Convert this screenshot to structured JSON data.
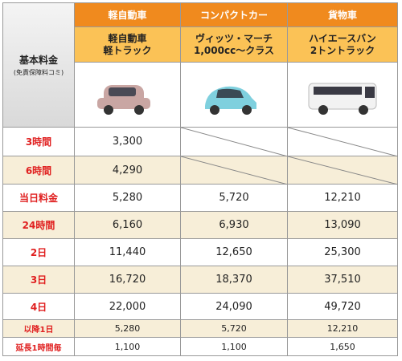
{
  "header": {
    "corner_title": "基本料金",
    "corner_note": "(免責保障料コミ)",
    "columns": [
      {
        "category": "軽自動車",
        "models": [
          "軽自動車",
          "軽トラック"
        ]
      },
      {
        "category": "コンパクトカー",
        "models": [
          "ヴィッツ・マーチ",
          "1,000cc～クラス"
        ]
      },
      {
        "category": "貨物車",
        "models": [
          "ハイエースバン",
          "2トントラック"
        ]
      }
    ]
  },
  "table": {
    "rows": [
      {
        "label": "3時間",
        "values": [
          "3,300",
          null,
          null
        ]
      },
      {
        "label": "6時間",
        "values": [
          "4,290",
          null,
          null
        ]
      },
      {
        "label": "当日料金",
        "values": [
          "5,280",
          "5,720",
          "12,210"
        ]
      },
      {
        "label": "24時間",
        "values": [
          "6,160",
          "6,930",
          "13,090"
        ]
      },
      {
        "label": "2日",
        "values": [
          "11,440",
          "12,650",
          "25,300"
        ]
      },
      {
        "label": "3日",
        "values": [
          "16,720",
          "18,370",
          "37,510"
        ]
      },
      {
        "label": "4日",
        "values": [
          "22,000",
          "24,090",
          "49,720"
        ]
      },
      {
        "label": "以降1日",
        "values": [
          "5,280",
          "5,720",
          "12,210"
        ]
      },
      {
        "label": "延長1時間毎",
        "values": [
          "1,100",
          "1,100",
          "1,650"
        ]
      }
    ]
  }
}
